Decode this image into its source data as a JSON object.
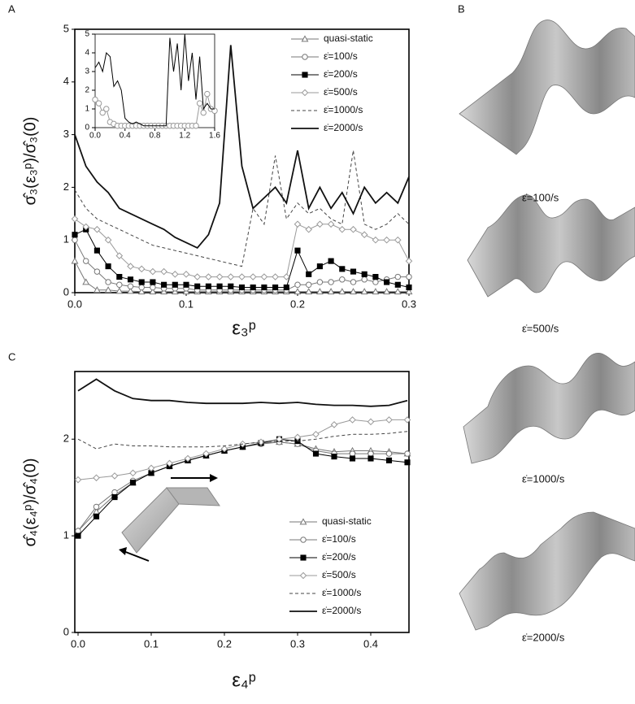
{
  "chart_data": [
    {
      "type": "line",
      "label": "A",
      "x_label": "ε₃ᵖ",
      "y_label": "σ̂₃(ε₃ᵖ)/σ̂₃(0)",
      "x": [
        0,
        0.01,
        0.02,
        0.03,
        0.04,
        0.05,
        0.06,
        0.07,
        0.08,
        0.09,
        0.1,
        0.11,
        0.12,
        0.13,
        0.14,
        0.15,
        0.16,
        0.17,
        0.18,
        0.19,
        0.2,
        0.21,
        0.22,
        0.23,
        0.24,
        0.25,
        0.26,
        0.27,
        0.28,
        0.29,
        0.3
      ],
      "xlim": [
        0,
        0.3
      ],
      "xticks": [
        {
          "value": 0,
          "label": "0.0"
        },
        0.1,
        0.2,
        0.3
      ],
      "ylim": [
        0,
        5
      ],
      "yticks": [
        0,
        1,
        2,
        3,
        4,
        5
      ],
      "legend": "upper right",
      "series": [
        {
          "name": "quasi-static",
          "color": "#777777",
          "marker": "triangle",
          "line_style": "solid",
          "values": [
            0.6,
            0.2,
            0.05,
            0.05,
            0.03,
            0.03,
            0.02,
            0.02,
            0.02,
            0.02,
            0.02,
            0.02,
            0.02,
            0.02,
            0.02,
            0.02,
            0.02,
            0.02,
            0.02,
            0.02,
            0.02,
            0.02,
            0.02,
            0.02,
            0.02,
            0.02,
            0.02,
            0.02,
            0.02,
            0.02,
            0.02
          ]
        },
        {
          "name": "ε̇=100/s",
          "color": "#777777",
          "marker": "circle",
          "line_style": "solid",
          "values": [
            1.0,
            0.6,
            0.4,
            0.2,
            0.15,
            0.12,
            0.1,
            0.1,
            0.08,
            0.08,
            0.08,
            0.05,
            0.05,
            0.05,
            0.05,
            0.05,
            0.05,
            0.05,
            0.05,
            0.05,
            0.15,
            0.15,
            0.2,
            0.2,
            0.25,
            0.2,
            0.25,
            0.2,
            0.25,
            0.3,
            0.3
          ]
        },
        {
          "name": "ε̇=200/s",
          "color": "#000000",
          "marker": "square",
          "line_style": "solid",
          "values": [
            1.1,
            1.2,
            0.8,
            0.5,
            0.3,
            0.25,
            0.2,
            0.2,
            0.15,
            0.15,
            0.15,
            0.12,
            0.12,
            0.12,
            0.12,
            0.1,
            0.1,
            0.1,
            0.1,
            0.1,
            0.8,
            0.35,
            0.5,
            0.6,
            0.45,
            0.4,
            0.35,
            0.3,
            0.2,
            0.15,
            0.1
          ]
        },
        {
          "name": "ε̇=500/s",
          "color": "#999999",
          "marker": "diamond",
          "line_style": "solid",
          "values": [
            1.4,
            1.25,
            1.2,
            1.0,
            0.7,
            0.5,
            0.45,
            0.4,
            0.4,
            0.35,
            0.35,
            0.3,
            0.3,
            0.3,
            0.3,
            0.3,
            0.3,
            0.3,
            0.3,
            0.3,
            1.3,
            1.2,
            1.3,
            1.3,
            1.2,
            1.2,
            1.1,
            1.0,
            1.0,
            1.0,
            0.6
          ]
        },
        {
          "name": "ε̇=1000/s",
          "color": "#444444",
          "marker": "none",
          "line_style": "dashed",
          "values": [
            1.95,
            1.6,
            1.4,
            1.3,
            1.2,
            1.1,
            1.0,
            0.9,
            0.85,
            0.8,
            0.75,
            0.7,
            0.65,
            0.6,
            0.55,
            0.5,
            1.6,
            1.3,
            2.6,
            1.4,
            1.7,
            1.5,
            1.6,
            1.4,
            1.3,
            2.7,
            1.3,
            1.2,
            1.3,
            1.5,
            1.3
          ]
        },
        {
          "name": "ε̇=2000/s",
          "color": "#111111",
          "marker": "none",
          "line_style": "thick",
          "values": [
            3.0,
            2.4,
            2.1,
            1.9,
            1.6,
            1.5,
            1.4,
            1.3,
            1.2,
            1.05,
            0.95,
            0.85,
            1.1,
            1.7,
            4.7,
            2.4,
            1.6,
            1.8,
            2.0,
            1.7,
            2.7,
            1.6,
            2.0,
            1.6,
            1.9,
            1.5,
            2.0,
            1.7,
            1.9,
            1.7,
            2.2
          ]
        }
      ]
    },
    {
      "type": "line",
      "x": [
        0,
        0.05,
        0.1,
        0.15,
        0.2,
        0.25,
        0.3,
        0.35,
        0.4,
        0.45,
        0.5,
        0.55,
        0.6,
        0.65,
        0.7,
        0.75,
        0.8,
        0.85,
        0.9,
        0.95,
        1.0,
        1.05,
        1.1,
        1.15,
        1.2,
        1.25,
        1.3,
        1.35,
        1.4,
        1.45,
        1.5,
        1.55,
        1.6
      ],
      "xlim": [
        0,
        1.6
      ],
      "xticks": [
        {
          "value": 0,
          "label": "0.0"
        },
        0.4,
        0.8,
        1.2,
        1.6
      ],
      "ylim": [
        0,
        5
      ],
      "yticks": [
        0,
        1,
        2,
        3,
        4,
        5
      ],
      "series": [
        {
          "color": "#999999",
          "marker": "circle",
          "line_style": "solid",
          "values": [
            1.5,
            1.3,
            0.8,
            1.0,
            0.3,
            0.2,
            0.1,
            0.1,
            0.1,
            0.1,
            0.1,
            0.1,
            0.1,
            0.1,
            0.1,
            0.1,
            0.1,
            0.1,
            0.1,
            0.1,
            0.1,
            0.1,
            0.1,
            0.1,
            0.1,
            0.1,
            0.1,
            0.1,
            1.3,
            0.8,
            1.8,
            1.0,
            0.9
          ]
        },
        {
          "color": "#000000",
          "marker": "none",
          "line_style": "solid",
          "values": [
            3.2,
            3.5,
            3.0,
            4.0,
            3.8,
            2.2,
            2.5,
            2.0,
            0.5,
            0.3,
            0.2,
            0.3,
            0.2,
            0.1,
            0.1,
            0.1,
            0.1,
            0.1,
            0.1,
            0.1,
            4.8,
            3.0,
            4.5,
            2.0,
            5.0,
            2.5,
            4.0,
            1.5,
            3.8,
            1.0,
            1.3,
            1.0,
            1.0
          ]
        }
      ]
    },
    {
      "type": "line",
      "label": "C",
      "x_label": "ε₄ᵖ",
      "y_label": "σ̂₄(ε₄ᵖ)/σ̂₄(0)",
      "x": [
        0,
        0.025,
        0.05,
        0.075,
        0.1,
        0.125,
        0.15,
        0.175,
        0.2,
        0.225,
        0.25,
        0.275,
        0.3,
        0.325,
        0.35,
        0.375,
        0.4,
        0.425,
        0.45
      ],
      "xlim": [
        0,
        0.45
      ],
      "xticks": [
        {
          "value": 0,
          "label": "0.0"
        },
        0.1,
        0.2,
        0.3,
        0.4
      ],
      "ylim": [
        0,
        2.7
      ],
      "yticks": [
        0,
        1,
        2
      ],
      "legend": "lower right",
      "series": [
        {
          "name": "quasi-static",
          "color": "#777777",
          "marker": "triangle",
          "line_style": "solid",
          "values": [
            1.05,
            1.25,
            1.42,
            1.55,
            1.65,
            1.72,
            1.78,
            1.83,
            1.88,
            1.92,
            1.96,
            1.97,
            1.95,
            1.9,
            1.87,
            1.88,
            1.88,
            1.87,
            1.85
          ]
        },
        {
          "name": "ε̇=100/s",
          "color": "#777777",
          "marker": "circle",
          "line_style": "solid",
          "values": [
            1.05,
            1.3,
            1.45,
            1.57,
            1.65,
            1.72,
            1.78,
            1.83,
            1.88,
            1.92,
            1.95,
            1.97,
            1.95,
            1.88,
            1.85,
            1.85,
            1.85,
            1.85,
            1.85
          ]
        },
        {
          "name": "ε̇=200/s",
          "color": "#000000",
          "marker": "square",
          "line_style": "solid",
          "values": [
            1.0,
            1.2,
            1.4,
            1.55,
            1.65,
            1.72,
            1.78,
            1.83,
            1.88,
            1.92,
            1.96,
            2.0,
            1.98,
            1.85,
            1.82,
            1.8,
            1.8,
            1.78,
            1.76
          ]
        },
        {
          "name": "ε̇=500/s",
          "color": "#999999",
          "marker": "diamond",
          "line_style": "solid",
          "values": [
            1.58,
            1.6,
            1.62,
            1.65,
            1.7,
            1.75,
            1.8,
            1.85,
            1.9,
            1.95,
            1.97,
            2.0,
            2.02,
            2.05,
            2.15,
            2.2,
            2.18,
            2.2,
            2.2
          ]
        },
        {
          "name": "ε̇=1000/s",
          "color": "#444444",
          "marker": "none",
          "line_style": "dashed",
          "values": [
            2.0,
            1.9,
            1.95,
            1.93,
            1.93,
            1.92,
            1.92,
            1.92,
            1.93,
            1.95,
            1.97,
            1.98,
            1.98,
            2.0,
            2.03,
            2.05,
            2.05,
            2.06,
            2.08
          ]
        },
        {
          "name": "ε̇=2000/s",
          "color": "#111111",
          "marker": "none",
          "line_style": "thick",
          "values": [
            2.5,
            2.62,
            2.5,
            2.42,
            2.4,
            2.4,
            2.38,
            2.37,
            2.37,
            2.37,
            2.38,
            2.37,
            2.38,
            2.36,
            2.35,
            2.35,
            2.34,
            2.35,
            2.4
          ]
        }
      ]
    }
  ],
  "panel_b": {
    "label": "B",
    "captions": [
      "ε̇=100/s",
      "ε̇=500/s",
      "ε̇=1000/s",
      "ε̇=2000/s"
    ]
  }
}
